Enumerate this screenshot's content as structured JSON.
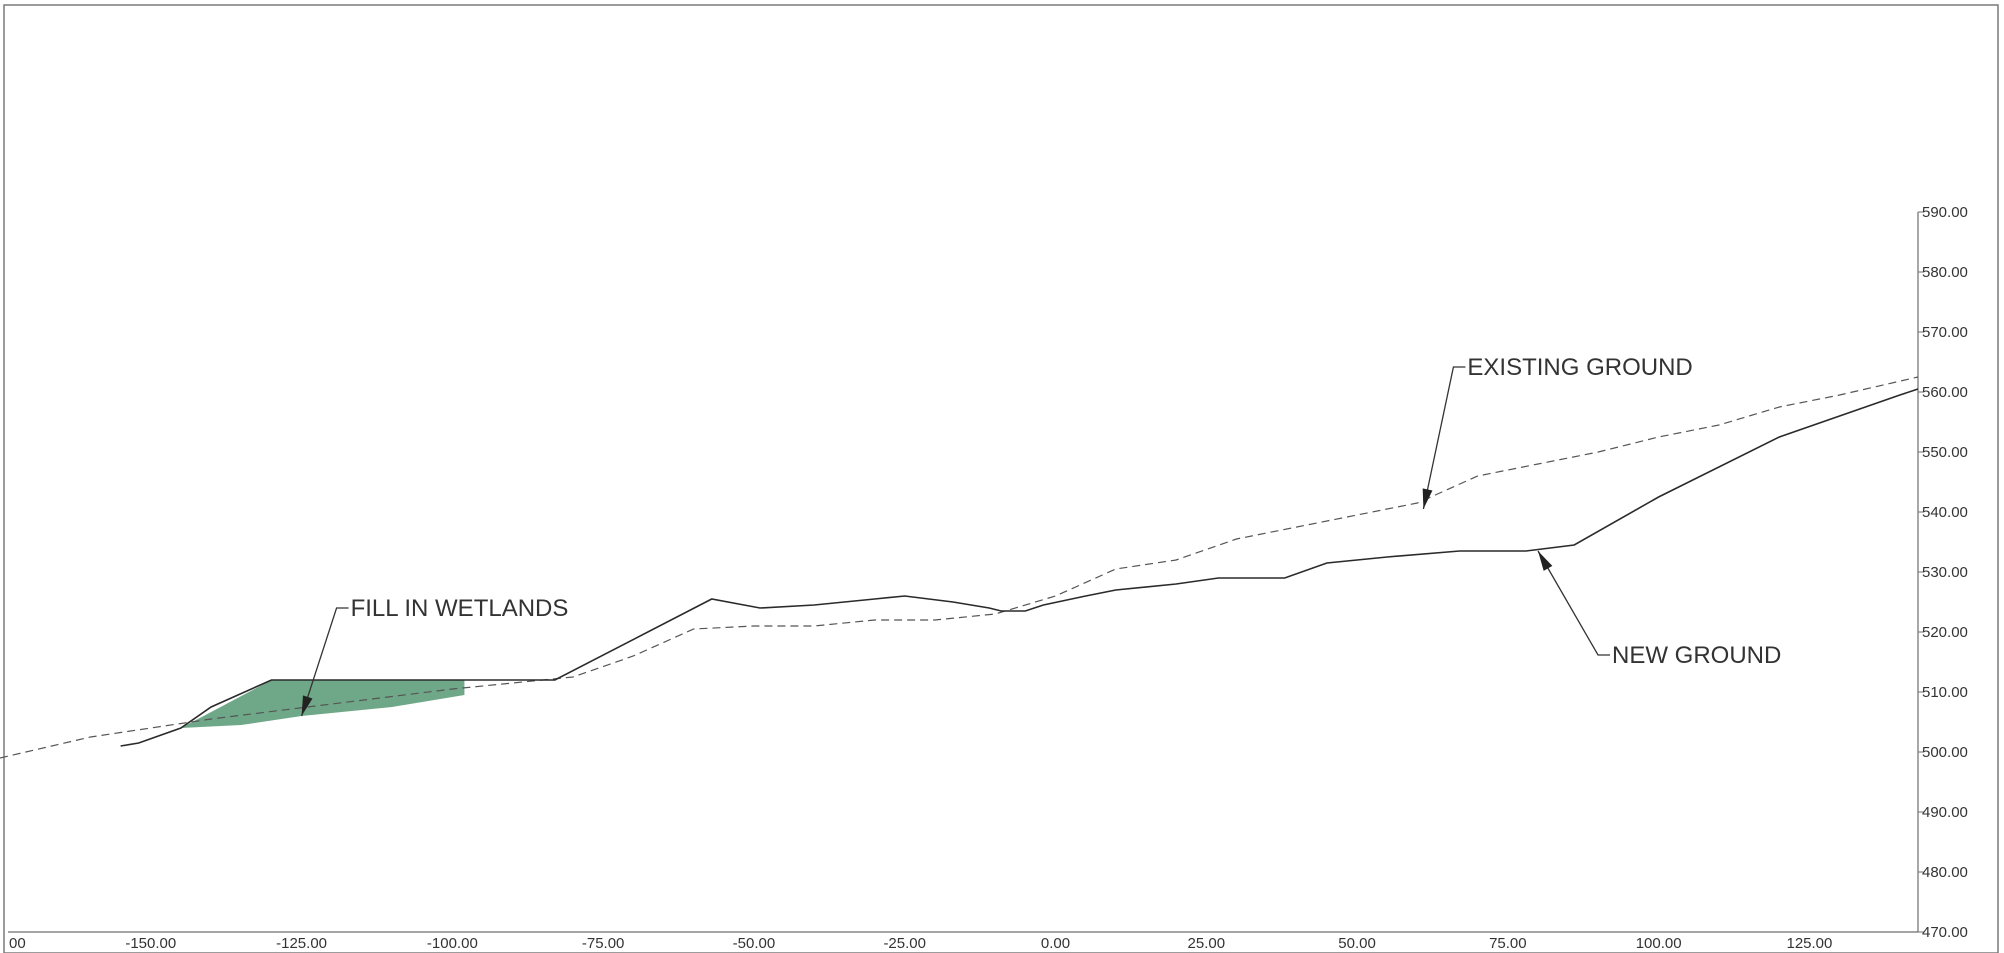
{
  "chart_data": {
    "type": "line",
    "title": "",
    "xlabel": "",
    "ylabel": "",
    "xlim": [
      -175,
      143
    ],
    "ylim": [
      470,
      590
    ],
    "x_tick_labels": [
      "-150.00",
      "-125.00",
      "-100.00",
      "-75.00",
      "-50.00",
      "-25.00",
      "0.00",
      "25.00",
      "50.00",
      "75.00",
      "100.00",
      "125.00"
    ],
    "x_tick_values": [
      -150,
      -125,
      -100,
      -75,
      -50,
      -25,
      0,
      25,
      50,
      75,
      100,
      125
    ],
    "x_edge_label": "00",
    "y_tick_labels": [
      "470.00",
      "480.00",
      "490.00",
      "500.00",
      "510.00",
      "520.00",
      "530.00",
      "540.00",
      "550.00",
      "560.00",
      "570.00",
      "580.00",
      "590.00"
    ],
    "y_tick_values": [
      470,
      480,
      490,
      500,
      510,
      520,
      530,
      540,
      550,
      560,
      570,
      580,
      590
    ],
    "grid": false,
    "colors": {
      "fill": "#5f9f7c",
      "line": "#2a2a2a",
      "dashed": "#555555"
    },
    "series": [
      {
        "name": "EXISTING GROUND",
        "style": "dashed",
        "x": [
          -175,
          -160,
          -140,
          -120,
          -100,
          -80,
          -70,
          -60,
          -50,
          -40,
          -30,
          -20,
          -10,
          0,
          10,
          20,
          30,
          40,
          50,
          60,
          70,
          80,
          90,
          100,
          110,
          120,
          130,
          143
        ],
        "y": [
          499,
          502.5,
          505.5,
          508,
          510.5,
          512.5,
          516,
          520.5,
          521,
          521,
          522,
          522,
          523,
          526,
          530.5,
          532,
          535.5,
          537.5,
          539.5,
          541.5,
          546,
          548,
          550,
          552.5,
          554.5,
          557.5,
          559.5,
          562.5
        ]
      },
      {
        "name": "NEW GROUND",
        "style": "solid",
        "x": [
          -155,
          -152,
          -145,
          -140,
          -130,
          -83,
          -57,
          -49,
          -40,
          -30,
          -25,
          -17,
          -11,
          -9,
          -5,
          -2,
          5,
          10,
          20,
          27,
          38,
          45,
          55,
          67,
          78,
          86,
          100,
          120,
          140,
          143
        ],
        "y": [
          501,
          501.5,
          504,
          507.5,
          512,
          512,
          525.5,
          524,
          524.5,
          525.5,
          526,
          525,
          524,
          523.5,
          523.5,
          524.5,
          526,
          527,
          528,
          529,
          529,
          531.5,
          532.5,
          533.5,
          533.5,
          534.5,
          542.5,
          552.5,
          559.5,
          560.5
        ]
      }
    ],
    "fill_region": {
      "name": "FILL IN WETLANDS",
      "top": {
        "x": [
          -145,
          -130,
          -98
        ],
        "y": [
          504,
          512,
          512
        ]
      },
      "bottom": {
        "x": [
          -98,
          -110,
          -125,
          -135,
          -145
        ],
        "y": [
          509.5,
          507.5,
          506,
          504.5,
          504
        ]
      }
    },
    "annotations": [
      {
        "text": "FILL IN WETLANDS",
        "target": [
          -125,
          506
        ]
      },
      {
        "text": "EXISTING GROUND",
        "target": [
          61,
          540.5
        ]
      },
      {
        "text": "NEW GROUND",
        "target": [
          80,
          533.5
        ]
      }
    ]
  }
}
